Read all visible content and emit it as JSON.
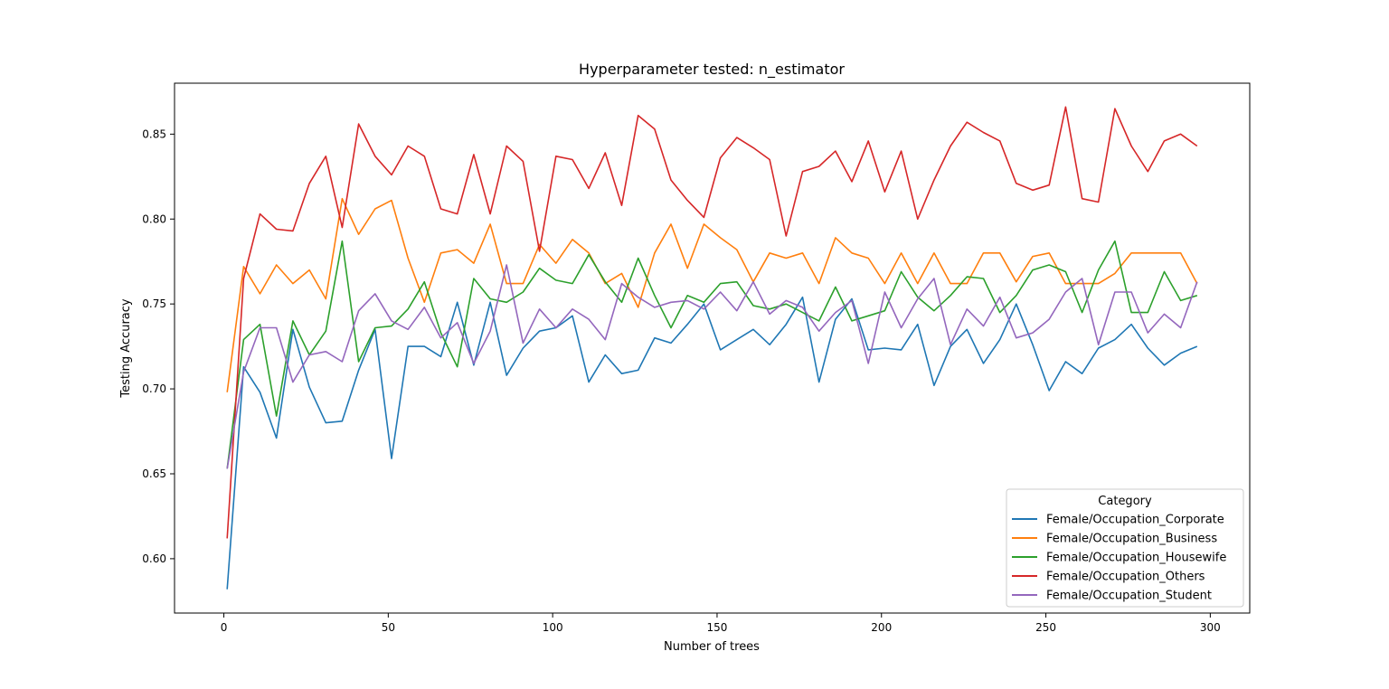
{
  "chart_data": {
    "type": "line",
    "title": "Hyperparameter tested: n_estimator",
    "xlabel": "Number of trees",
    "ylabel": "Testing Accuracy",
    "xlim": [
      -15,
      312
    ],
    "ylim": [
      0.568,
      0.88
    ],
    "xticks": [
      0,
      50,
      100,
      150,
      200,
      250,
      300
    ],
    "yticks": [
      0.6,
      0.65,
      0.7,
      0.75,
      0.8,
      0.85
    ],
    "grid": false,
    "legend": {
      "title": "Category",
      "position": "lower-right"
    },
    "x": [
      1,
      6,
      11,
      16,
      21,
      26,
      31,
      36,
      41,
      46,
      51,
      56,
      61,
      66,
      71,
      76,
      81,
      86,
      91,
      96,
      101,
      106,
      111,
      116,
      121,
      126,
      131,
      136,
      141,
      146,
      151,
      156,
      161,
      166,
      171,
      176,
      181,
      186,
      191,
      196,
      201,
      206,
      211,
      216,
      221,
      226,
      231,
      236,
      241,
      246,
      251,
      256,
      261,
      266,
      271,
      276,
      281,
      286,
      291,
      296
    ],
    "series": [
      {
        "name": "Female/Occupation_Corporate",
        "color": "#1f77b4",
        "values": [
          0.582,
          0.713,
          0.698,
          0.671,
          0.735,
          0.701,
          0.68,
          0.681,
          0.711,
          0.735,
          0.659,
          0.725,
          0.725,
          0.719,
          0.751,
          0.714,
          0.751,
          0.708,
          0.724,
          0.734,
          0.736,
          0.743,
          0.704,
          0.72,
          0.709,
          0.711,
          0.73,
          0.727,
          0.738,
          0.75,
          0.723,
          0.729,
          0.735,
          0.726,
          0.738,
          0.754,
          0.704,
          0.741,
          0.753,
          0.723,
          0.724,
          0.723,
          0.738,
          0.702,
          0.725,
          0.735,
          0.715,
          0.729,
          0.75,
          0.726,
          0.699,
          0.716,
          0.709,
          0.724,
          0.729,
          0.738,
          0.724,
          0.714,
          0.721,
          0.725
        ]
      },
      {
        "name": "Female/Occupation_Business",
        "color": "#ff7f0e",
        "values": [
          0.698,
          0.772,
          0.756,
          0.773,
          0.762,
          0.77,
          0.753,
          0.812,
          0.791,
          0.806,
          0.811,
          0.777,
          0.751,
          0.78,
          0.782,
          0.774,
          0.797,
          0.762,
          0.762,
          0.785,
          0.774,
          0.788,
          0.78,
          0.762,
          0.768,
          0.748,
          0.78,
          0.797,
          0.771,
          0.797,
          0.789,
          0.782,
          0.763,
          0.78,
          0.777,
          0.78,
          0.762,
          0.789,
          0.78,
          0.777,
          0.762,
          0.78,
          0.762,
          0.78,
          0.762,
          0.762,
          0.78,
          0.78,
          0.763,
          0.778,
          0.78,
          0.762,
          0.762,
          0.762,
          0.768,
          0.78,
          0.78,
          0.78,
          0.78,
          0.762
        ]
      },
      {
        "name": "Female/Occupation_Housewife",
        "color": "#2ca02c",
        "values": [
          0.653,
          0.729,
          0.738,
          0.684,
          0.74,
          0.72,
          0.734,
          0.787,
          0.716,
          0.736,
          0.737,
          0.747,
          0.763,
          0.733,
          0.713,
          0.765,
          0.753,
          0.751,
          0.757,
          0.771,
          0.764,
          0.762,
          0.779,
          0.763,
          0.751,
          0.777,
          0.755,
          0.736,
          0.755,
          0.751,
          0.762,
          0.763,
          0.749,
          0.747,
          0.75,
          0.745,
          0.74,
          0.76,
          0.74,
          0.743,
          0.746,
          0.769,
          0.754,
          0.746,
          0.755,
          0.766,
          0.765,
          0.745,
          0.755,
          0.77,
          0.773,
          0.769,
          0.745,
          0.77,
          0.787,
          0.745,
          0.745,
          0.769,
          0.752,
          0.755
        ]
      },
      {
        "name": "Female/Occupation_Others",
        "color": "#d62728",
        "values": [
          0.612,
          0.765,
          0.803,
          0.794,
          0.793,
          0.821,
          0.837,
          0.795,
          0.856,
          0.837,
          0.826,
          0.843,
          0.837,
          0.806,
          0.803,
          0.838,
          0.803,
          0.843,
          0.834,
          0.781,
          0.837,
          0.835,
          0.818,
          0.839,
          0.808,
          0.861,
          0.853,
          0.823,
          0.811,
          0.801,
          0.836,
          0.848,
          0.842,
          0.835,
          0.79,
          0.828,
          0.831,
          0.84,
          0.822,
          0.846,
          0.816,
          0.84,
          0.8,
          0.823,
          0.843,
          0.857,
          0.851,
          0.846,
          0.821,
          0.817,
          0.82,
          0.866,
          0.812,
          0.81,
          0.865,
          0.843,
          0.828,
          0.846,
          0.85,
          0.843
        ]
      },
      {
        "name": "Female/Occupation_Student",
        "color": "#9467bd",
        "values": [
          0.653,
          0.71,
          0.736,
          0.736,
          0.704,
          0.72,
          0.722,
          0.716,
          0.746,
          0.756,
          0.74,
          0.735,
          0.748,
          0.73,
          0.739,
          0.715,
          0.734,
          0.773,
          0.727,
          0.747,
          0.736,
          0.747,
          0.741,
          0.729,
          0.762,
          0.754,
          0.748,
          0.751,
          0.752,
          0.747,
          0.757,
          0.746,
          0.763,
          0.744,
          0.752,
          0.748,
          0.734,
          0.745,
          0.752,
          0.715,
          0.757,
          0.736,
          0.753,
          0.765,
          0.726,
          0.747,
          0.737,
          0.754,
          0.73,
          0.733,
          0.741,
          0.757,
          0.765,
          0.726,
          0.757,
          0.757,
          0.733,
          0.744,
          0.736,
          0.763
        ]
      }
    ]
  }
}
